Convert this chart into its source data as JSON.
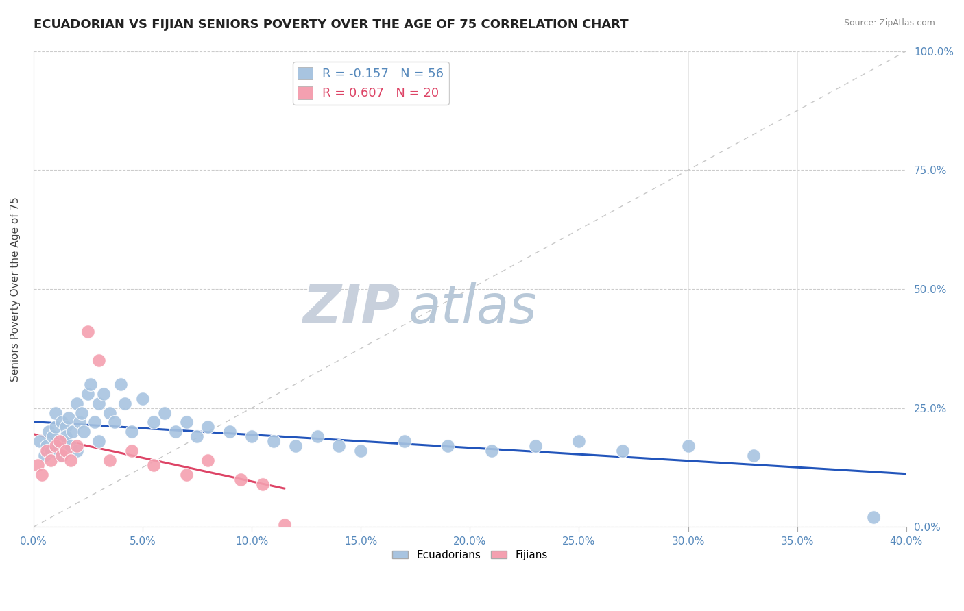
{
  "title": "ECUADORIAN VS FIJIAN SENIORS POVERTY OVER THE AGE OF 75 CORRELATION CHART",
  "source": "Source: ZipAtlas.com",
  "ylabel": "Seniors Poverty Over the Age of 75",
  "xlim": [
    0.0,
    40.0
  ],
  "ylim": [
    0.0,
    100.0
  ],
  "yticks": [
    0.0,
    25.0,
    50.0,
    75.0,
    100.0
  ],
  "xticks": [
    0.0,
    5.0,
    10.0,
    15.0,
    20.0,
    25.0,
    30.0,
    35.0,
    40.0
  ],
  "ecuador_R": -0.157,
  "ecuador_N": 56,
  "fijian_R": 0.607,
  "fijian_N": 20,
  "ecuador_color": "#a8c4e0",
  "fijian_color": "#f4a0b0",
  "ecuador_line_color": "#2255bb",
  "fijian_line_color": "#dd4466",
  "diagonal_color": "#c8c8c8",
  "watermark_zip": "ZIP",
  "watermark_atlas": "atlas",
  "watermark_color_zip": "#c8d0dc",
  "watermark_color_atlas": "#b8c8d8",
  "ecuador_x": [
    0.3,
    0.5,
    0.6,
    0.7,
    0.8,
    0.9,
    1.0,
    1.0,
    1.1,
    1.2,
    1.3,
    1.4,
    1.5,
    1.5,
    1.6,
    1.7,
    1.8,
    2.0,
    2.0,
    2.1,
    2.2,
    2.3,
    2.5,
    2.6,
    2.8,
    3.0,
    3.0,
    3.2,
    3.5,
    3.7,
    4.0,
    4.2,
    4.5,
    5.0,
    5.5,
    6.0,
    6.5,
    7.0,
    7.5,
    8.0,
    9.0,
    10.0,
    11.0,
    12.0,
    13.0,
    14.0,
    15.0,
    17.0,
    19.0,
    21.0,
    23.0,
    25.0,
    27.0,
    30.0,
    33.0,
    38.5
  ],
  "ecuador_y": [
    18.0,
    15.0,
    17.0,
    20.0,
    16.0,
    19.0,
    21.0,
    24.0,
    17.0,
    15.0,
    22.0,
    18.0,
    21.0,
    19.0,
    23.0,
    17.0,
    20.0,
    26.0,
    16.0,
    22.0,
    24.0,
    20.0,
    28.0,
    30.0,
    22.0,
    26.0,
    18.0,
    28.0,
    24.0,
    22.0,
    30.0,
    26.0,
    20.0,
    27.0,
    22.0,
    24.0,
    20.0,
    22.0,
    19.0,
    21.0,
    20.0,
    19.0,
    18.0,
    17.0,
    19.0,
    17.0,
    16.0,
    18.0,
    17.0,
    16.0,
    17.0,
    18.0,
    16.0,
    17.0,
    15.0,
    2.0
  ],
  "fijian_x": [
    0.2,
    0.4,
    0.6,
    0.8,
    1.0,
    1.2,
    1.3,
    1.5,
    1.7,
    2.0,
    2.5,
    3.0,
    3.5,
    4.5,
    5.5,
    7.0,
    8.0,
    9.5,
    10.5,
    11.5
  ],
  "fijian_y": [
    13.0,
    11.0,
    16.0,
    14.0,
    17.0,
    18.0,
    15.0,
    16.0,
    14.0,
    17.0,
    41.0,
    35.0,
    14.0,
    16.0,
    13.0,
    11.0,
    14.0,
    10.0,
    9.0,
    0.5
  ]
}
